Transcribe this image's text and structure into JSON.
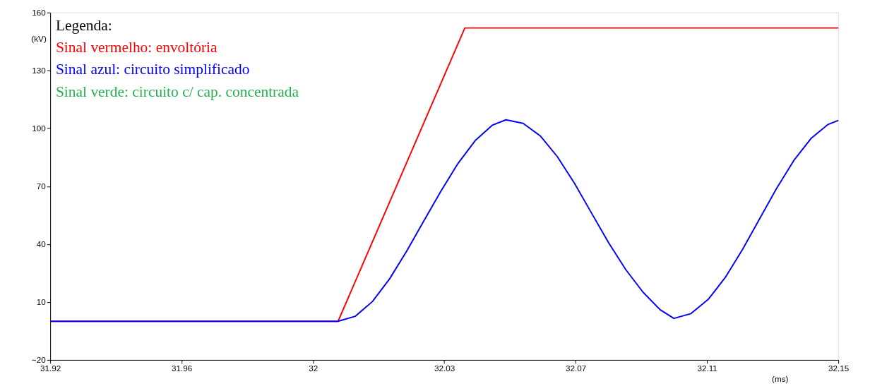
{
  "chart_data": {
    "type": "line",
    "xlabel": "(ms)",
    "ylabel": "(kV)",
    "legend_title": "Legenda:",
    "legend": "top left",
    "grid": false,
    "line_style": "solid",
    "marker": "none",
    "xlim": [
      31.92,
      32.15
    ],
    "ylim": [
      -20,
      160
    ],
    "xticks": [
      {
        "value": 31.92,
        "label": "31.92"
      },
      {
        "value": 31.958333,
        "label": "31.96"
      },
      {
        "value": 31.996667,
        "label": "32"
      },
      {
        "value": 32.035,
        "label": "32.03"
      },
      {
        "value": 32.073333,
        "label": "32.07"
      },
      {
        "value": 32.111667,
        "label": "32.11"
      },
      {
        "value": 32.15,
        "label": "32.15"
      }
    ],
    "yticks": [
      -20,
      10,
      40,
      70,
      100,
      130,
      160
    ],
    "series": [
      {
        "name": "Sinal vermelho: envoltória",
        "color": "#ff0000",
        "x": [
          31.92,
          32.004,
          32.041,
          32.15
        ],
        "values": [
          0,
          0,
          152,
          152
        ]
      },
      {
        "name": "Sinal azul: circuito simplificado",
        "color": "#0000ff",
        "x": [
          31.92,
          32.004,
          32.009,
          32.014,
          32.019,
          32.024,
          32.029,
          32.034,
          32.039,
          32.044,
          32.049,
          32.053,
          32.058,
          32.063,
          32.068,
          32.073,
          32.078,
          32.083,
          32.088,
          32.093,
          32.098,
          32.102,
          32.107,
          32.112,
          32.117,
          32.122,
          32.127,
          32.132,
          32.137,
          32.142,
          32.147,
          32.15
        ],
        "values": [
          0,
          0,
          2.6,
          10.2,
          21.9,
          36.3,
          51.9,
          67.4,
          81.8,
          93.6,
          101.6,
          104.4,
          102.6,
          96.1,
          85.3,
          71.5,
          56.0,
          40.6,
          26.7,
          15.1,
          6.0,
          1.5,
          4.0,
          11.3,
          22.7,
          37.1,
          53.0,
          68.9,
          83.3,
          94.7,
          102.0,
          104.1
        ]
      },
      {
        "name": "Sinal verde: circuito c/ cap. concentrada",
        "color": "#22b14c"
      }
    ]
  }
}
